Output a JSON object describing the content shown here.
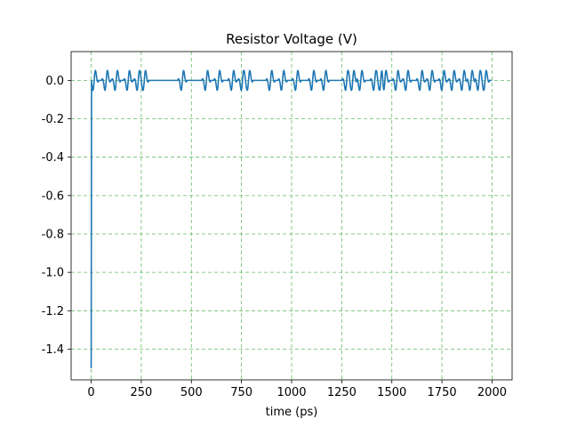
{
  "chart_data": {
    "type": "line",
    "title": "Resistor Voltage (V)",
    "xlabel": "time (ps)",
    "ylabel": "",
    "xlim": [
      -100,
      2100
    ],
    "ylim": [
      -1.56,
      0.15
    ],
    "xticks": [
      0,
      250,
      500,
      750,
      1000,
      1250,
      1500,
      1750,
      2000
    ],
    "yticks": [
      0.0,
      -0.2,
      -0.4,
      -0.6,
      -0.8,
      -1.0,
      -1.2,
      -1.4
    ],
    "grid": true,
    "grid_color": "#66bb66",
    "series_color": "#1f77b4",
    "initial_point": {
      "x": 0,
      "y": -1.5
    },
    "x_range": [
      0,
      2000
    ],
    "pulse_amplitude": 0.065,
    "pulse_times": [
      15,
      75,
      125,
      185,
      235,
      265,
      455,
      575,
      635,
      705,
      755,
      785,
      895,
      955,
      1025,
      1105,
      1165,
      1275,
      1305,
      1345,
      1415,
      1445,
      1465,
      1525,
      1575,
      1645,
      1695,
      1755,
      1805,
      1855,
      1895,
      1935,
      1965
    ]
  }
}
